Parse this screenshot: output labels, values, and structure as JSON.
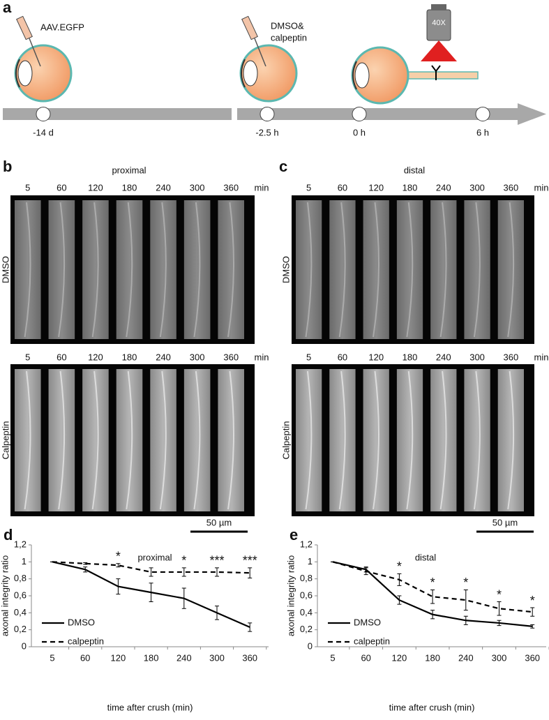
{
  "panel_a": {
    "letter": "a",
    "injection_1": "AAV.EGFP",
    "injection_2": [
      "DMSO&",
      "calpeptin"
    ],
    "objective": "40X",
    "timepoints": [
      "-14 d",
      "-2.5 h",
      "0 h",
      "6 h"
    ]
  },
  "panel_b": {
    "letter": "b",
    "title": "proximal",
    "times": [
      "5",
      "60",
      "120",
      "180",
      "240",
      "300",
      "360"
    ],
    "unit": "min",
    "rows": [
      "DMSO",
      "Calpeptin"
    ],
    "scale_bar": "50 µm"
  },
  "panel_c": {
    "letter": "c",
    "title": "distal",
    "times": [
      "5",
      "60",
      "120",
      "180",
      "240",
      "300",
      "360"
    ],
    "unit": "min",
    "rows": [
      "DMSO",
      "Calpeptin"
    ],
    "scale_bar": "50 µm"
  },
  "chart_data": [
    {
      "type": "line",
      "letter": "d",
      "title": "proximal",
      "xlabel": "time after crush (min)",
      "ylabel": "axonal integrity ratio",
      "categories": [
        "5",
        "60",
        "120",
        "180",
        "240",
        "300",
        "360"
      ],
      "series": [
        {
          "name": "DMSO",
          "color": "#000000",
          "line_style": "solid",
          "values": [
            1,
            0.91,
            0.71,
            0.64,
            0.57,
            0.4,
            0.23
          ],
          "errors": [
            0,
            0.03,
            0.09,
            0.11,
            0.12,
            0.08,
            0.05
          ]
        },
        {
          "name": "calpeptin",
          "color": "#000000",
          "line_style": "dashed",
          "values": [
            1,
            0.98,
            0.96,
            0.88,
            0.88,
            0.88,
            0.87
          ],
          "errors": [
            0,
            0.01,
            0.02,
            0.05,
            0.05,
            0.05,
            0.06
          ]
        }
      ],
      "significance": [
        null,
        null,
        "*",
        null,
        "*",
        "***",
        "***"
      ],
      "ylim": [
        0,
        1.2
      ],
      "yticks": [
        0,
        {
          "value": 0.2,
          "label": "0,2"
        },
        {
          "value": 0.4,
          "label": "0,4"
        },
        {
          "value": 0.6,
          "label": "0,6"
        },
        {
          "value": 0.8,
          "label": "0,8"
        },
        1,
        {
          "value": 1.2,
          "label": "1,2"
        }
      ],
      "legend": "lower left"
    },
    {
      "type": "line",
      "letter": "e",
      "title": "distal",
      "xlabel": "time after crush (min)",
      "ylabel": "axonal integrity ratio",
      "categories": [
        "5",
        "60",
        "120",
        "180",
        "240",
        "300",
        "360"
      ],
      "series": [
        {
          "name": "DMSO",
          "color": "#000000",
          "line_style": "solid",
          "values": [
            1,
            0.91,
            0.55,
            0.38,
            0.31,
            0.28,
            0.24
          ],
          "errors": [
            0,
            0.03,
            0.05,
            0.05,
            0.05,
            0.03,
            0.02
          ]
        },
        {
          "name": "calpeptin",
          "color": "#000000",
          "line_style": "dashed",
          "values": [
            1,
            0.89,
            0.79,
            0.59,
            0.55,
            0.45,
            0.41
          ],
          "errors": [
            0,
            0.04,
            0.07,
            0.08,
            0.12,
            0.08,
            0.05
          ]
        }
      ],
      "significance": [
        null,
        null,
        "*",
        "*",
        "*",
        "*",
        "*"
      ],
      "ylim": [
        0,
        1.2
      ],
      "yticks": [
        0,
        {
          "value": 0.2,
          "label": "0,2"
        },
        {
          "value": 0.4,
          "label": "0,4"
        },
        {
          "value": 0.6,
          "label": "0,6"
        },
        {
          "value": 0.8,
          "label": "0,8"
        },
        1,
        {
          "value": 1.2,
          "label": "1,2"
        }
      ],
      "legend": "lower left"
    }
  ]
}
